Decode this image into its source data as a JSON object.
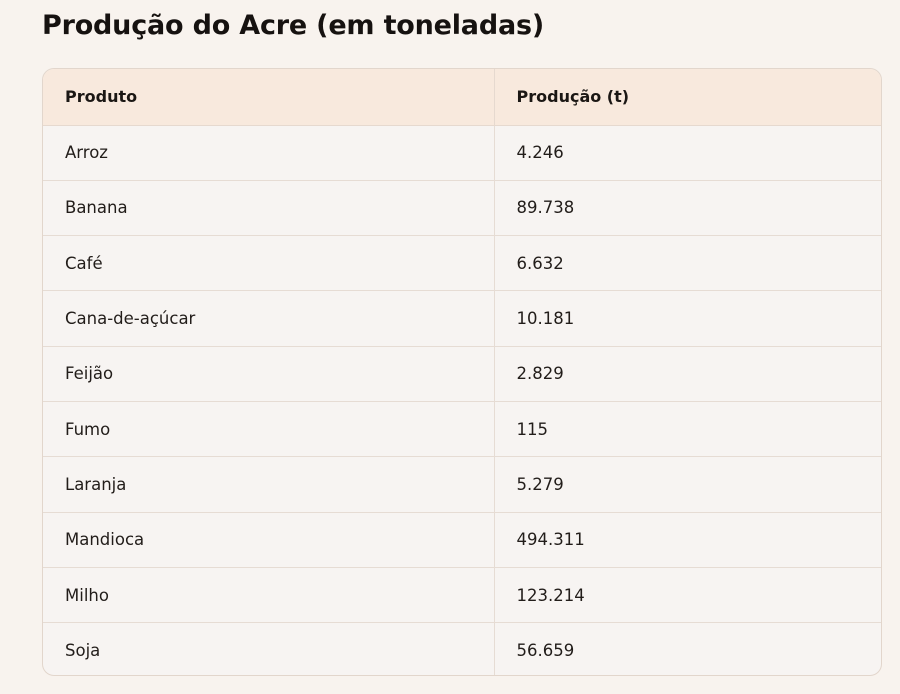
{
  "page": {
    "title": "Produção do Acre (em toneladas)"
  },
  "table": {
    "columns": [
      "Produto",
      "Produção (t)"
    ],
    "rows": [
      {
        "produto": "Arroz",
        "producao": "4.246"
      },
      {
        "produto": "Banana",
        "producao": "89.738"
      },
      {
        "produto": "Café",
        "producao": "6.632"
      },
      {
        "produto": "Cana-de-açúcar",
        "producao": "10.181"
      },
      {
        "produto": "Feijão",
        "producao": "2.829"
      },
      {
        "produto": "Fumo",
        "producao": "115"
      },
      {
        "produto": "Laranja",
        "producao": "5.279"
      },
      {
        "produto": "Mandioca",
        "producao": "494.311"
      },
      {
        "produto": "Milho",
        "producao": "123.214"
      },
      {
        "produto": "Soja",
        "producao": "56.659"
      }
    ]
  },
  "colors": {
    "page_background": "#f8f3ee",
    "header_background": "#f8e9dd",
    "body_background": "#f7f4f2",
    "border": "#e2d6cc",
    "text": "#1e1a17"
  }
}
